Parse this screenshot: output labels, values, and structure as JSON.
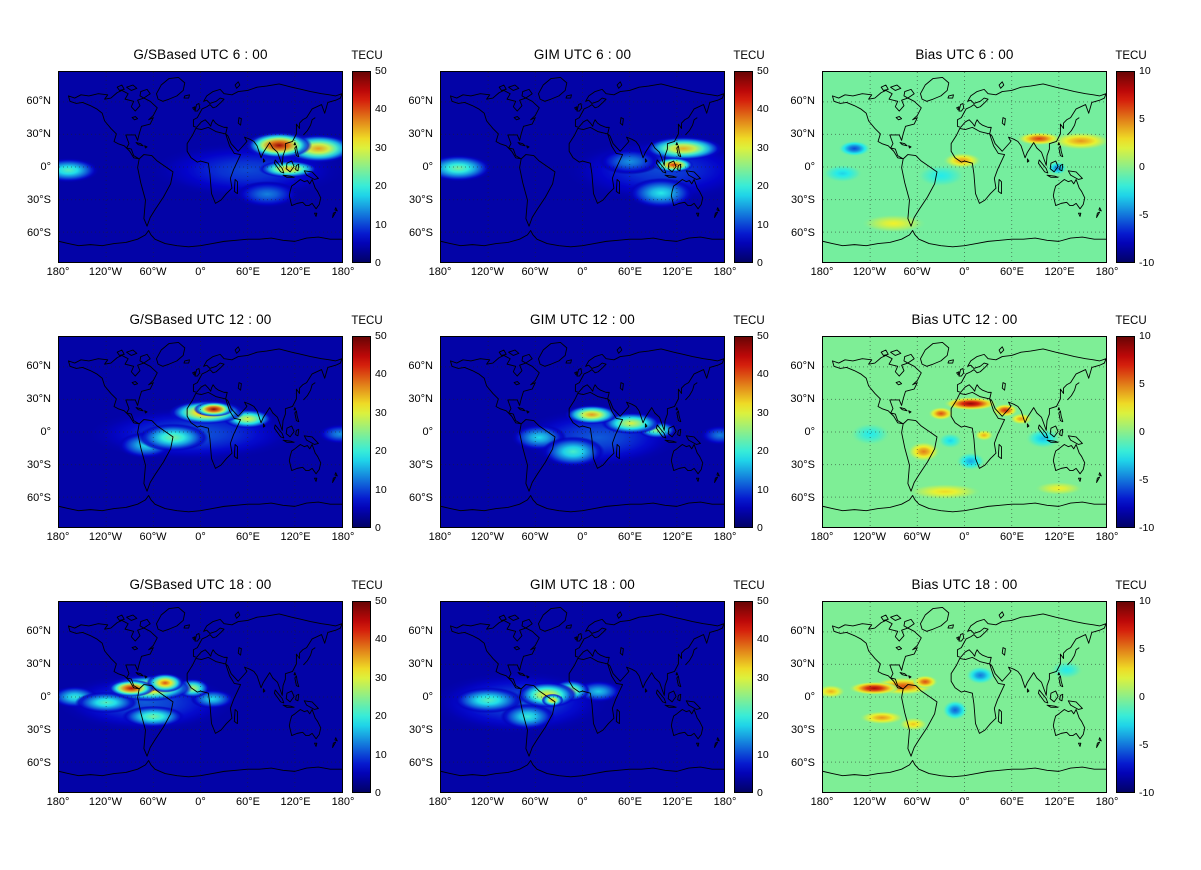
{
  "figure": {
    "background": "#ffffff",
    "coastline_color": "#000000",
    "grid_color": "#222222"
  },
  "axes": {
    "x_tick_labels": [
      "180°",
      "120°W",
      "60°W",
      "0°",
      "60°E",
      "120°E",
      "180°"
    ],
    "x_tick_lons": [
      -180,
      -120,
      -60,
      0,
      60,
      120,
      180
    ],
    "y_tick_labels": [
      "60°N",
      "30°N",
      "0°",
      "30°S",
      "60°S"
    ],
    "y_tick_lats": [
      60,
      30,
      0,
      -30,
      -60
    ],
    "lon_range": [
      -180,
      180
    ],
    "lat_range": [
      -87.5,
      87.5
    ],
    "colorbar_label": "TECU"
  },
  "chart_data": [
    {
      "type": "heatmap",
      "title": "G/SBased UTC 6 : 00",
      "units": "TECU",
      "colormap": "jet",
      "colorbar_range": [
        0,
        50
      ],
      "colorbar_ticks": [
        0,
        10,
        20,
        30,
        40,
        50
      ],
      "background_value": 4,
      "hotspots": [
        {
          "lon": 100,
          "lat": 20,
          "value": 47,
          "rlon": 42,
          "rlat": 12
        },
        {
          "lon": 150,
          "lat": 17,
          "value": 36,
          "rlon": 45,
          "rlat": 13
        },
        {
          "lon": 112,
          "lat": -2,
          "value": 34,
          "rlon": 38,
          "rlat": 8
        },
        {
          "lon": -168,
          "lat": -3,
          "value": 22,
          "rlon": 38,
          "rlat": 11
        },
        {
          "lon": 85,
          "lat": -25,
          "value": 13,
          "rlon": 40,
          "rlat": 12
        },
        {
          "lon": 60,
          "lat": -3,
          "value": 10,
          "rlon": 120,
          "rlat": 25
        }
      ]
    },
    {
      "type": "heatmap",
      "title": "GIM UTC 6 : 00",
      "units": "TECU",
      "colormap": "jet",
      "colorbar_range": [
        0,
        50
      ],
      "colorbar_ticks": [
        0,
        10,
        20,
        30,
        40,
        50
      ],
      "background_value": 4,
      "hotspots": [
        {
          "lon": 116,
          "lat": 2,
          "value": 42,
          "rlon": 26,
          "rlat": 7
        },
        {
          "lon": 128,
          "lat": 17,
          "value": 35,
          "rlon": 50,
          "rlat": 11
        },
        {
          "lon": -158,
          "lat": -1,
          "value": 24,
          "rlon": 42,
          "rlat": 12
        },
        {
          "lon": 100,
          "lat": -24,
          "value": 19,
          "rlon": 42,
          "rlat": 14
        },
        {
          "lon": 60,
          "lat": 5,
          "value": 14,
          "rlon": 40,
          "rlat": 12
        },
        {
          "lon": 100,
          "lat": -3,
          "value": 10,
          "rlon": 120,
          "rlat": 28
        }
      ]
    },
    {
      "type": "heatmap",
      "title": "Bias UTC 6 : 00",
      "units": "TECU",
      "colormap": "jet",
      "colorbar_range": [
        -10,
        10
      ],
      "colorbar_ticks": [
        -10,
        -5,
        0,
        5,
        10
      ],
      "background_value": -0.5,
      "hotspots": [
        {
          "lon": 95,
          "lat": 26,
          "value": 6.5,
          "rlon": 28,
          "rlat": 6
        },
        {
          "lon": 148,
          "lat": 24,
          "value": 4.5,
          "rlon": 38,
          "rlat": 8
        },
        {
          "lon": -3,
          "lat": 6,
          "value": 4.5,
          "rlon": 24,
          "rlat": 7
        },
        {
          "lon": -140,
          "lat": 17,
          "value": -6,
          "rlon": 20,
          "rlat": 7
        },
        {
          "lon": 118,
          "lat": -1,
          "value": -5,
          "rlon": 12,
          "rlat": 6
        },
        {
          "lon": -155,
          "lat": -6,
          "value": -3,
          "rlon": 25,
          "rlat": 8
        },
        {
          "lon": -30,
          "lat": -8,
          "value": -2.5,
          "rlon": 30,
          "rlat": 10
        },
        {
          "lon": -90,
          "lat": -52,
          "value": 2.5,
          "rlon": 40,
          "rlat": 8
        }
      ]
    },
    {
      "type": "heatmap",
      "title": "G/SBased UTC 12 : 00",
      "units": "TECU",
      "colormap": "jet",
      "colorbar_range": [
        0,
        50
      ],
      "colorbar_ticks": [
        0,
        10,
        20,
        30,
        40,
        50
      ],
      "background_value": 4,
      "hotspots": [
        {
          "lon": 17,
          "lat": 21,
          "value": 48,
          "rlon": 26,
          "rlat": 7
        },
        {
          "lon": 8,
          "lat": 18,
          "value": 40,
          "rlon": 48,
          "rlat": 11
        },
        {
          "lon": 60,
          "lat": 12,
          "value": 30,
          "rlon": 32,
          "rlat": 9
        },
        {
          "lon": -35,
          "lat": -5,
          "value": 24,
          "rlon": 45,
          "rlat": 13
        },
        {
          "lon": -70,
          "lat": -12,
          "value": 18,
          "rlon": 35,
          "rlat": 12
        },
        {
          "lon": 178,
          "lat": -2,
          "value": 14,
          "rlon": 28,
          "rlat": 9
        },
        {
          "lon": -10,
          "lat": -2,
          "value": 11,
          "rlon": 130,
          "rlat": 24
        }
      ]
    },
    {
      "type": "heatmap",
      "title": "GIM UTC 12 : 00",
      "units": "TECU",
      "colormap": "jet",
      "colorbar_range": [
        0,
        50
      ],
      "colorbar_ticks": [
        0,
        10,
        20,
        30,
        40,
        50
      ],
      "background_value": 4,
      "hotspots": [
        {
          "lon": 12,
          "lat": 16,
          "value": 36,
          "rlon": 34,
          "rlat": 9
        },
        {
          "lon": 62,
          "lat": 8,
          "value": 30,
          "rlon": 38,
          "rlat": 10
        },
        {
          "lon": 95,
          "lat": 2,
          "value": 26,
          "rlon": 25,
          "rlat": 8
        },
        {
          "lon": -12,
          "lat": -18,
          "value": 21,
          "rlon": 40,
          "rlat": 14
        },
        {
          "lon": -55,
          "lat": -5,
          "value": 18,
          "rlon": 35,
          "rlat": 12
        },
        {
          "lon": 175,
          "lat": -3,
          "value": 13,
          "rlon": 25,
          "rlat": 9
        },
        {
          "lon": 20,
          "lat": -5,
          "value": 11,
          "rlon": 100,
          "rlat": 26
        }
      ]
    },
    {
      "type": "heatmap",
      "title": "Bias UTC 12 : 00",
      "units": "TECU",
      "colormap": "jet",
      "colorbar_range": [
        -10,
        10
      ],
      "colorbar_ticks": [
        -10,
        -5,
        0,
        5,
        10
      ],
      "background_value": -0.3,
      "hotspots": [
        {
          "lon": 8,
          "lat": 26,
          "value": 9,
          "rlon": 34,
          "rlat": 6
        },
        {
          "lon": -30,
          "lat": 17,
          "value": 6,
          "rlon": 16,
          "rlat": 6
        },
        {
          "lon": 52,
          "lat": 20,
          "value": 7,
          "rlon": 16,
          "rlat": 6
        },
        {
          "lon": 72,
          "lat": 12,
          "value": 4.5,
          "rlon": 14,
          "rlat": 5
        },
        {
          "lon": 25,
          "lat": -3,
          "value": 4,
          "rlon": 12,
          "rlat": 5
        },
        {
          "lon": -52,
          "lat": -18,
          "value": 5,
          "rlon": 20,
          "rlat": 9
        },
        {
          "lon": 8,
          "lat": -27,
          "value": -4,
          "rlon": 18,
          "rlat": 8
        },
        {
          "lon": -18,
          "lat": -8,
          "value": -3,
          "rlon": 15,
          "rlat": 7
        },
        {
          "lon": 100,
          "lat": -6,
          "value": -3.5,
          "rlon": 22,
          "rlat": 9
        },
        {
          "lon": -120,
          "lat": -2,
          "value": -2.5,
          "rlon": 25,
          "rlat": 10
        },
        {
          "lon": -25,
          "lat": -55,
          "value": 3,
          "rlon": 45,
          "rlat": 7
        },
        {
          "lon": 120,
          "lat": -52,
          "value": 2.5,
          "rlon": 30,
          "rlat": 6
        }
      ]
    },
    {
      "type": "heatmap",
      "title": "G/SBased UTC 18 : 00",
      "units": "TECU",
      "colormap": "jet",
      "colorbar_range": [
        0,
        50
      ],
      "colorbar_ticks": [
        0,
        10,
        20,
        30,
        40,
        50
      ],
      "background_value": 4,
      "hotspots": [
        {
          "lon": -88,
          "lat": 8,
          "value": 46,
          "rlon": 30,
          "rlat": 8
        },
        {
          "lon": -45,
          "lat": 13,
          "value": 40,
          "rlon": 24,
          "rlat": 9
        },
        {
          "lon": -65,
          "lat": 8,
          "value": 38,
          "rlon": 55,
          "rlat": 12
        },
        {
          "lon": -10,
          "lat": 8,
          "value": 28,
          "rlon": 22,
          "rlat": 9
        },
        {
          "lon": -120,
          "lat": -5,
          "value": 22,
          "rlon": 40,
          "rlat": 10
        },
        {
          "lon": -160,
          "lat": 0,
          "value": 20,
          "rlon": 30,
          "rlat": 10
        },
        {
          "lon": -60,
          "lat": -18,
          "value": 24,
          "rlon": 40,
          "rlat": 10
        },
        {
          "lon": 15,
          "lat": -2,
          "value": 18,
          "rlon": 28,
          "rlat": 9
        },
        {
          "lon": -70,
          "lat": -5,
          "value": 11,
          "rlon": 110,
          "rlat": 26
        }
      ]
    },
    {
      "type": "heatmap",
      "title": "GIM UTC 18 : 00",
      "units": "TECU",
      "colormap": "jet",
      "colorbar_range": [
        0,
        50
      ],
      "colorbar_ticks": [
        0,
        10,
        20,
        30,
        40,
        50
      ],
      "background_value": 4,
      "hotspots": [
        {
          "lon": -38,
          "lat": -3,
          "value": 35,
          "rlon": 14,
          "rlat": 6
        },
        {
          "lon": -45,
          "lat": 2,
          "value": 32,
          "rlon": 38,
          "rlat": 12
        },
        {
          "lon": -15,
          "lat": 6,
          "value": 28,
          "rlon": 25,
          "rlat": 10
        },
        {
          "lon": -120,
          "lat": -3,
          "value": 22,
          "rlon": 45,
          "rlat": 12
        },
        {
          "lon": -70,
          "lat": -18,
          "value": 20,
          "rlon": 35,
          "rlat": 12
        },
        {
          "lon": 20,
          "lat": 5,
          "value": 17,
          "rlon": 30,
          "rlat": 10
        },
        {
          "lon": -80,
          "lat": -5,
          "value": 11,
          "rlon": 110,
          "rlat": 28
        }
      ]
    },
    {
      "type": "heatmap",
      "title": "Bias UTC 18 : 00",
      "units": "TECU",
      "colormap": "jet",
      "colorbar_range": [
        -10,
        10
      ],
      "colorbar_ticks": [
        -10,
        -5,
        0,
        5,
        10
      ],
      "background_value": -0.3,
      "hotspots": [
        {
          "lon": -115,
          "lat": 8,
          "value": 8.5,
          "rlon": 32,
          "rlat": 6
        },
        {
          "lon": -50,
          "lat": 14,
          "value": 6,
          "rlon": 16,
          "rlat": 6
        },
        {
          "lon": -78,
          "lat": 10,
          "value": 6,
          "rlon": 40,
          "rlat": 8
        },
        {
          "lon": -170,
          "lat": 5,
          "value": 4,
          "rlon": 18,
          "rlat": 6
        },
        {
          "lon": -105,
          "lat": -19,
          "value": 4.5,
          "rlon": 28,
          "rlat": 6
        },
        {
          "lon": -65,
          "lat": -25,
          "value": 3.5,
          "rlon": 18,
          "rlat": 6
        },
        {
          "lon": 20,
          "lat": 20,
          "value": -5,
          "rlon": 18,
          "rlat": 8
        },
        {
          "lon": -12,
          "lat": -12,
          "value": -5.5,
          "rlon": 16,
          "rlat": 9
        },
        {
          "lon": 130,
          "lat": 25,
          "value": -2.5,
          "rlon": 20,
          "rlat": 8
        }
      ]
    }
  ]
}
